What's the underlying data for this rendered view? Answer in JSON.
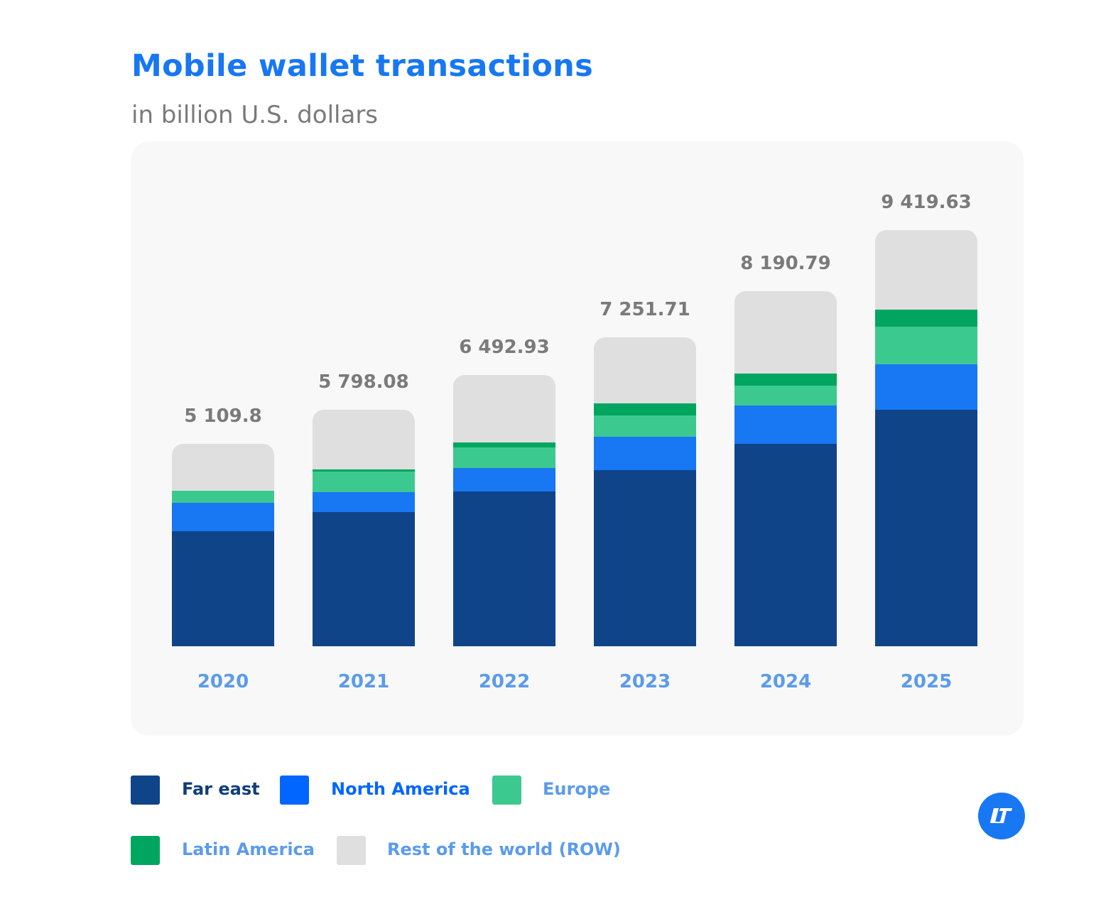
{
  "chart_data": {
    "type": "bar",
    "stacked": true,
    "title": "Mobile wallet transactions",
    "subtitle": "in billion U.S. dollars",
    "xlabel": "",
    "ylabel": "",
    "grid": false,
    "legend_position": "bottom",
    "categories": [
      "2020",
      "2021",
      "2022",
      "2023",
      "2024",
      "2025"
    ],
    "totals": [
      "5 109.8",
      "5 798.08",
      "6 492.93",
      "7 251.71",
      "8 190.79",
      "9 419.63"
    ],
    "total_values": [
      5109.8,
      5798.08,
      6492.93,
      7251.71,
      8190.79,
      9419.63
    ],
    "series": [
      {
        "name": "Far east",
        "color": "#0f4489",
        "legend_color": "#0f4489",
        "values": [
          2904,
          3293,
          3703,
          4139,
          4669,
          5353
        ]
      },
      {
        "name": "North America",
        "color": "#1877f2",
        "legend_color": "#0066ff",
        "values": [
          717,
          483,
          575,
          778,
          885,
          1029
        ]
      },
      {
        "name": "Europe",
        "color": "#3cc990",
        "legend_color": "#3cc990",
        "values": [
          305,
          501,
          490,
          513,
          459,
          852
        ]
      },
      {
        "name": "Latin America",
        "color": "#00a65f",
        "legend_color": "#00a65f",
        "values": [
          0,
          54,
          118,
          281,
          278,
          386
        ]
      },
      {
        "name": "Rest of the world (ROW)",
        "color": "#dfdfdf",
        "legend_color": "#dfdfdf",
        "values": [
          1184,
          1467,
          1607,
          1541,
          1900,
          1800
        ]
      }
    ],
    "legend_text_colors": [
      "#0f3d7a",
      "#0066ff",
      "#5b9bea",
      "#5b9bea",
      "#5b9bea"
    ]
  },
  "logo": {
    "icon": "brand-logo-icon",
    "color": "#1877f2"
  }
}
